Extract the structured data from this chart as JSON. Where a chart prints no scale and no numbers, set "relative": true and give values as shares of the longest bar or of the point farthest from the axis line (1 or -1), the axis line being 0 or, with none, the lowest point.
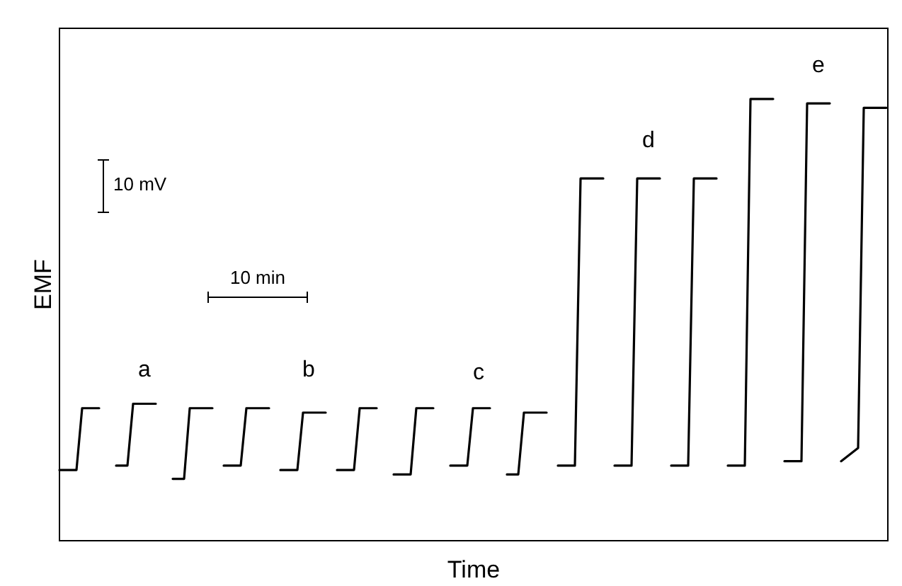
{
  "chart_data": {
    "type": "line",
    "xlabel": "Time",
    "ylabel": "EMF",
    "relative": true,
    "annotations": [
      "a",
      "b",
      "c",
      "d",
      "e",
      "10 mV",
      "10 min"
    ],
    "categories": [
      null,
      null,
      null,
      null,
      null,
      null,
      null,
      null,
      null,
      null,
      null,
      null,
      null,
      null,
      null,
      null,
      null,
      null,
      null,
      null,
      null,
      null,
      null,
      null,
      null,
      null,
      null,
      null,
      null,
      null,
      null,
      null,
      null,
      null,
      null,
      null,
      null,
      null,
      null,
      null,
      null,
      null,
      null,
      null,
      null,
      null,
      null,
      null,
      null,
      null,
      null,
      null,
      null,
      null,
      null,
      null,
      null,
      null,
      null,
      null,
      null,
      null,
      null,
      null,
      null,
      null,
      null,
      null,
      null,
      null,
      null,
      null,
      null,
      null,
      null,
      null,
      null,
      null,
      null,
      null,
      null,
      null,
      null,
      null,
      null,
      null,
      null,
      null,
      null,
      null,
      null,
      null,
      null,
      null,
      null,
      null,
      null,
      null,
      null,
      null,
      null,
      null,
      null,
      null,
      null,
      null,
      null,
      null,
      null,
      null,
      null,
      null,
      null,
      null,
      null,
      null,
      null,
      null,
      null,
      null,
      null,
      null,
      null,
      null,
      null,
      null,
      null,
      null,
      null,
      null,
      null,
      null,
      null,
      null,
      null,
      null,
      null,
      null,
      null,
      null,
      null,
      null,
      null,
      null,
      null,
      null,
      null
    ],
    "series": [
      {
        "color": "#000000",
        "values": [
          0.16,
          0.16,
          0.16,
          0.16,
          0.3,
          0.3,
          0.3,
          0.3,
          null,
          null,
          null,
          null,
          null,
          null,
          null,
          null,
          null,
          null,
          null,
          null,
          null,
          null,
          null,
          null,
          null,
          null,
          null,
          null,
          null,
          null,
          null,
          null,
          null,
          null,
          null,
          null,
          null,
          null,
          null,
          null,
          null,
          null,
          null,
          null,
          null,
          null,
          null,
          null,
          null,
          null,
          null,
          null,
          null,
          null,
          null,
          null,
          null,
          null,
          null,
          null,
          null,
          null,
          null,
          null,
          null,
          null,
          null,
          null,
          null,
          null,
          null,
          null,
          null,
          null,
          null,
          null,
          null,
          null,
          null,
          null,
          null,
          null,
          null,
          null,
          null,
          null,
          null,
          null,
          null,
          null,
          null,
          null,
          null,
          null,
          null,
          null,
          null,
          null,
          null,
          null,
          null,
          null,
          null,
          null,
          null,
          null,
          null,
          null,
          null,
          null,
          null,
          null,
          null,
          null,
          null,
          null,
          null,
          null,
          null,
          null,
          null,
          null,
          null,
          null,
          null,
          null,
          null,
          null,
          null,
          null,
          null,
          null,
          null,
          null,
          null,
          null,
          null,
          null,
          null,
          null,
          null,
          null,
          null,
          null,
          null,
          null,
          null
        ]
      },
      {
        "color": "#000000",
        "values": [
          null,
          null,
          null,
          null,
          null,
          null,
          null,
          null,
          null,
          null,
          0.17,
          0.17,
          0.17,
          0.31,
          0.31,
          0.31,
          0.31,
          0.31,
          null,
          null,
          null,
          null,
          null,
          null,
          null,
          null,
          null,
          null,
          null,
          null,
          null,
          null,
          null,
          null,
          null,
          null,
          null,
          null,
          null,
          null,
          null,
          null,
          null,
          null,
          null,
          null,
          null,
          null,
          null,
          null,
          null,
          null,
          null,
          null,
          null,
          null,
          null,
          null,
          null,
          null,
          null,
          null,
          null,
          null,
          null,
          null,
          null,
          null,
          null,
          null,
          null,
          null,
          null,
          null,
          null,
          null,
          null,
          null,
          null,
          null,
          null,
          null,
          null,
          null,
          null,
          null,
          null,
          null,
          null,
          null,
          null,
          null,
          null,
          null,
          null,
          null,
          null,
          null,
          null,
          null,
          null,
          null,
          null,
          null,
          null,
          null,
          null,
          null,
          null,
          null,
          null,
          null,
          null,
          null,
          null,
          null,
          null,
          null,
          null,
          null,
          null,
          null,
          null,
          null,
          null,
          null,
          null,
          null,
          null,
          null,
          null,
          null,
          null,
          null,
          null,
          null,
          null,
          null,
          null,
          null,
          null,
          null,
          null,
          null,
          null,
          null,
          null
        ]
      },
      {
        "color": "#000000",
        "values": [
          null,
          null,
          null,
          null,
          null,
          null,
          null,
          null,
          null,
          null,
          null,
          null,
          null,
          null,
          null,
          null,
          null,
          null,
          null,
          null,
          0.14,
          0.14,
          0.14,
          0.3,
          0.3,
          0.3,
          0.3,
          0.3,
          null,
          null,
          null,
          null,
          null,
          null,
          null,
          null,
          null,
          null,
          null,
          null,
          null,
          null,
          null,
          null,
          null,
          null,
          null,
          null,
          null,
          null,
          null,
          null,
          null,
          null,
          null,
          null,
          null,
          null,
          null,
          null,
          null,
          null,
          null,
          null,
          null,
          null,
          null,
          null,
          null,
          null,
          null,
          null,
          null,
          null,
          null,
          null,
          null,
          null,
          null,
          null,
          null,
          null,
          null,
          null,
          null,
          null,
          null,
          null,
          null,
          null,
          null,
          null,
          null,
          null,
          null,
          null,
          null,
          null,
          null,
          null,
          null,
          null,
          null,
          null,
          null,
          null,
          null,
          null,
          null,
          null,
          null,
          null,
          null,
          null,
          null,
          null,
          null,
          null,
          null,
          null,
          null,
          null,
          null,
          null,
          null,
          null,
          null,
          null,
          null,
          null,
          null,
          null,
          null,
          null,
          null,
          null,
          null,
          null,
          null,
          null,
          null,
          null,
          null,
          null,
          null,
          null,
          null
        ]
      },
      {
        "color": "#000000",
        "values": [
          null,
          null,
          null,
          null,
          null,
          null,
          null,
          null,
          null,
          null,
          null,
          null,
          null,
          null,
          null,
          null,
          null,
          null,
          null,
          null,
          null,
          null,
          null,
          null,
          null,
          null,
          null,
          null,
          null,
          0.17,
          0.17,
          0.17,
          0.17,
          0.3,
          0.3,
          0.3,
          0.3,
          0.3,
          null,
          null,
          null,
          null,
          null,
          null,
          null,
          null,
          null,
          null,
          null,
          null,
          null,
          null,
          null,
          null,
          null,
          null,
          null,
          null,
          null,
          null,
          null,
          null,
          null,
          null,
          null,
          null,
          null,
          null,
          null,
          null,
          null,
          null,
          null,
          null,
          null,
          null,
          null,
          null,
          null,
          null,
          null,
          null,
          null,
          null,
          null,
          null,
          null,
          null,
          null,
          null,
          null,
          null,
          null,
          null,
          null,
          null,
          null,
          null,
          null,
          null,
          null,
          null,
          null,
          null,
          null,
          null,
          null,
          null,
          null,
          null,
          null,
          null,
          null,
          null,
          null,
          null,
          null,
          null,
          null,
          null,
          null,
          null,
          null,
          null,
          null,
          null,
          null,
          null,
          null,
          null,
          null,
          null,
          null,
          null,
          null,
          null,
          null,
          null,
          null,
          null,
          null,
          null,
          null,
          null,
          null,
          null,
          null
        ]
      },
      {
        "color": "#000000",
        "values": [
          null,
          null,
          null,
          null,
          null,
          null,
          null,
          null,
          null,
          null,
          null,
          null,
          null,
          null,
          null,
          null,
          null,
          null,
          null,
          null,
          null,
          null,
          null,
          null,
          null,
          null,
          null,
          null,
          null,
          null,
          null,
          null,
          null,
          null,
          null,
          null,
          null,
          null,
          null,
          0.16,
          0.16,
          0.16,
          0.16,
          0.29,
          0.29,
          0.29,
          0.29,
          0.29,
          null,
          null,
          null,
          null,
          null,
          null,
          null,
          null,
          null,
          null,
          null,
          null,
          null,
          null,
          null,
          null,
          null,
          null,
          null,
          null,
          null,
          null,
          null,
          null,
          null,
          null,
          null,
          null,
          null,
          null,
          null,
          null,
          null,
          null,
          null,
          null,
          null,
          null,
          null,
          null,
          null,
          null,
          null,
          null,
          null,
          null,
          null,
          null,
          null,
          null,
          null,
          null,
          null,
          null,
          null,
          null,
          null,
          null,
          null,
          null,
          null,
          null,
          null,
          null,
          null,
          null,
          null,
          null,
          null,
          null,
          null,
          null,
          null,
          null,
          null,
          null,
          null,
          null,
          null,
          null,
          null,
          null,
          null,
          null,
          null,
          null,
          null,
          null,
          null,
          null,
          null,
          null,
          null,
          null,
          null,
          null,
          null,
          null,
          null
        ]
      },
      {
        "color": "#000000",
        "values": [
          null,
          null,
          null,
          null,
          null,
          null,
          null,
          null,
          null,
          null,
          null,
          null,
          null,
          null,
          null,
          null,
          null,
          null,
          null,
          null,
          null,
          null,
          null,
          null,
          null,
          null,
          null,
          null,
          null,
          null,
          null,
          null,
          null,
          null,
          null,
          null,
          null,
          null,
          null,
          null,
          null,
          null,
          null,
          null,
          null,
          null,
          null,
          null,
          null,
          0.16,
          0.16,
          0.16,
          0.16,
          0.3,
          0.3,
          0.3,
          0.3,
          null,
          null,
          null,
          null,
          null,
          null,
          null,
          null,
          null,
          null,
          null,
          null,
          null,
          null,
          null,
          null,
          null,
          null,
          null,
          null,
          null,
          null,
          null,
          null,
          null,
          null,
          null,
          null,
          null,
          null,
          null,
          null,
          null,
          null,
          null,
          null,
          null,
          null,
          null,
          null,
          null,
          null,
          null,
          null,
          null,
          null,
          null,
          null,
          null,
          null,
          null,
          null,
          null,
          null,
          null,
          null,
          null,
          null,
          null,
          null,
          null,
          null,
          null,
          null,
          null,
          null,
          null,
          null,
          null,
          null,
          null,
          null,
          null,
          null,
          null,
          null,
          null,
          null,
          null,
          null,
          null,
          null,
          null,
          null,
          null,
          null,
          null,
          null,
          null,
          null
        ]
      },
      {
        "color": "#000000",
        "values": [
          null,
          null,
          null,
          null,
          null,
          null,
          null,
          null,
          null,
          null,
          null,
          null,
          null,
          null,
          null,
          null,
          null,
          null,
          null,
          null,
          null,
          null,
          null,
          null,
          null,
          null,
          null,
          null,
          null,
          null,
          null,
          null,
          null,
          null,
          null,
          null,
          null,
          null,
          null,
          null,
          null,
          null,
          null,
          null,
          null,
          null,
          null,
          null,
          null,
          null,
          null,
          null,
          null,
          null,
          null,
          null,
          null,
          null,
          null,
          0.15,
          0.15,
          0.15,
          0.15,
          0.3,
          0.3,
          0.3,
          0.3,
          null,
          null,
          null,
          null,
          null,
          null,
          null,
          null,
          null,
          null,
          null,
          null,
          null,
          null,
          null,
          null,
          null,
          null,
          null,
          null,
          null,
          null,
          null,
          null,
          null,
          null,
          null,
          null,
          null,
          null,
          null,
          null,
          null,
          null,
          null,
          null,
          null,
          null,
          null,
          null,
          null,
          null,
          null,
          null,
          null,
          null,
          null,
          null,
          null,
          null,
          null,
          null,
          null,
          null,
          null,
          null,
          null,
          null,
          null,
          null,
          null,
          null,
          null,
          null,
          null,
          null,
          null,
          null,
          null,
          null,
          null,
          null,
          null,
          null,
          null,
          null,
          null,
          null,
          null,
          null
        ]
      },
      {
        "color": "#000000",
        "values": [
          null,
          null,
          null,
          null,
          null,
          null,
          null,
          null,
          null,
          null,
          null,
          null,
          null,
          null,
          null,
          null,
          null,
          null,
          null,
          null,
          null,
          null,
          null,
          null,
          null,
          null,
          null,
          null,
          null,
          null,
          null,
          null,
          null,
          null,
          null,
          null,
          null,
          null,
          null,
          null,
          null,
          null,
          null,
          null,
          null,
          null,
          null,
          null,
          null,
          null,
          null,
          null,
          null,
          null,
          null,
          null,
          null,
          null,
          null,
          null,
          null,
          null,
          null,
          null,
          null,
          null,
          null,
          null,
          null,
          0.17,
          0.17,
          0.17,
          0.17,
          0.3,
          0.3,
          0.3,
          0.3,
          null,
          null,
          null,
          null,
          null,
          null,
          null,
          null,
          null,
          null,
          null,
          null,
          null,
          null,
          null,
          null,
          null,
          null,
          null,
          null,
          null,
          null,
          null,
          null,
          null,
          null,
          null,
          null,
          null,
          null,
          null,
          null,
          null,
          null,
          null,
          null,
          null,
          null,
          null,
          null,
          null,
          null,
          null,
          null,
          null,
          null,
          null,
          null,
          null,
          null,
          null,
          null,
          null,
          null,
          null,
          null,
          null,
          null,
          null,
          null,
          null,
          null,
          null,
          null,
          null,
          null,
          null,
          null,
          null,
          null
        ]
      },
      {
        "color": "#000000",
        "values": [
          null,
          null,
          null,
          null,
          null,
          null,
          null,
          null,
          null,
          null,
          null,
          null,
          null,
          null,
          null,
          null,
          null,
          null,
          null,
          null,
          null,
          null,
          null,
          null,
          null,
          null,
          null,
          null,
          null,
          null,
          null,
          null,
          null,
          null,
          null,
          null,
          null,
          null,
          null,
          null,
          null,
          null,
          null,
          null,
          null,
          null,
          null,
          null,
          null,
          null,
          null,
          null,
          null,
          null,
          null,
          null,
          null,
          null,
          null,
          null,
          null,
          null,
          null,
          null,
          null,
          null,
          null,
          null,
          null,
          null,
          null,
          null,
          null,
          null,
          null,
          null,
          null,
          null,
          null,
          0.15,
          0.15,
          0.15,
          0.29,
          0.29,
          0.29,
          0.29,
          0.29,
          null,
          null,
          null,
          null,
          null,
          null,
          null,
          null,
          null,
          null,
          null,
          null,
          null,
          null,
          null,
          null,
          null,
          null,
          null,
          null,
          null,
          null,
          null,
          null,
          null,
          null,
          null,
          null,
          null,
          null,
          null,
          null,
          null,
          null,
          null,
          null,
          null,
          null,
          null,
          null,
          null,
          null,
          null,
          null,
          null,
          null,
          null,
          null,
          null,
          null,
          null,
          null,
          null,
          null,
          null,
          null,
          null,
          null,
          null,
          null
        ]
      },
      {
        "color": "#000000",
        "values": [
          null,
          null,
          null,
          null,
          null,
          null,
          null,
          null,
          null,
          null,
          null,
          null,
          null,
          null,
          null,
          null,
          null,
          null,
          null,
          null,
          null,
          null,
          null,
          null,
          null,
          null,
          null,
          null,
          null,
          null,
          null,
          null,
          null,
          null,
          null,
          null,
          null,
          null,
          null,
          null,
          null,
          null,
          null,
          null,
          null,
          null,
          null,
          null,
          null,
          null,
          null,
          null,
          null,
          null,
          null,
          null,
          null,
          null,
          null,
          null,
          null,
          null,
          null,
          null,
          null,
          null,
          null,
          null,
          null,
          null,
          null,
          null,
          null,
          null,
          null,
          null,
          null,
          null,
          null,
          null,
          null,
          null,
          null,
          null,
          null,
          null,
          null,
          null,
          0.17,
          0.17,
          0.17,
          0.17,
          0.82,
          0.82,
          0.82,
          0.82,
          0.82,
          null,
          null,
          null,
          null,
          null,
          null,
          null,
          null,
          null,
          null,
          null,
          null,
          null,
          null,
          null,
          null,
          null,
          null,
          null,
          null,
          null,
          null,
          null,
          null,
          null,
          null,
          null,
          null,
          null,
          null,
          null,
          null,
          null,
          null,
          null,
          null,
          null,
          null,
          null,
          null,
          null,
          null,
          null,
          null,
          null,
          null,
          null,
          null,
          null,
          null
        ]
      },
      {
        "color": "#000000",
        "values": [
          null,
          null,
          null,
          null,
          null,
          null,
          null,
          null,
          null,
          null,
          null,
          null,
          null,
          null,
          null,
          null,
          null,
          null,
          null,
          null,
          null,
          null,
          null,
          null,
          null,
          null,
          null,
          null,
          null,
          null,
          null,
          null,
          null,
          null,
          null,
          null,
          null,
          null,
          null,
          null,
          null,
          null,
          null,
          null,
          null,
          null,
          null,
          null,
          null,
          null,
          null,
          null,
          null,
          null,
          null,
          null,
          null,
          null,
          null,
          null,
          null,
          null,
          null,
          null,
          null,
          null,
          null,
          null,
          null,
          null,
          null,
          null,
          null,
          null,
          null,
          null,
          null,
          null,
          null,
          null,
          null,
          null,
          null,
          null,
          null,
          null,
          null,
          null,
          null,
          null,
          null,
          null,
          null,
          null,
          null,
          null,
          null,
          null,
          0.17,
          0.17,
          0.17,
          0.17,
          0.82,
          0.82,
          0.82,
          0.82,
          0.82,
          null,
          null,
          null,
          null,
          null,
          null,
          null,
          null,
          null,
          null,
          null,
          null,
          null,
          null,
          null,
          null,
          null,
          null,
          null,
          null,
          null,
          null,
          null,
          null,
          null,
          null,
          null,
          null,
          null,
          null,
          null,
          null,
          null,
          null,
          null,
          null,
          null,
          null,
          null,
          null
        ]
      },
      {
        "color": "#000000",
        "values": [
          null,
          null,
          null,
          null,
          null,
          null,
          null,
          null,
          null,
          null,
          null,
          null,
          null,
          null,
          null,
          null,
          null,
          null,
          null,
          null,
          null,
          null,
          null,
          null,
          null,
          null,
          null,
          null,
          null,
          null,
          null,
          null,
          null,
          null,
          null,
          null,
          null,
          null,
          null,
          null,
          null,
          null,
          null,
          null,
          null,
          null,
          null,
          null,
          null,
          null,
          null,
          null,
          null,
          null,
          null,
          null,
          null,
          null,
          null,
          null,
          null,
          null,
          null,
          null,
          null,
          null,
          null,
          null,
          null,
          null,
          null,
          null,
          null,
          null,
          null,
          null,
          null,
          null,
          null,
          null,
          null,
          null,
          null,
          null,
          null,
          null,
          null,
          null,
          null,
          null,
          null,
          null,
          null,
          null,
          null,
          null,
          null,
          null,
          null,
          null,
          null,
          null,
          null,
          null,
          null,
          null,
          null,
          null,
          0.17,
          0.17,
          0.17,
          0.17,
          0.82,
          0.82,
          0.82,
          0.82,
          0.82,
          null,
          null,
          null,
          null,
          null,
          null,
          null,
          null,
          null,
          null,
          null,
          null,
          null,
          null,
          null,
          null,
          null,
          null,
          null,
          null,
          null,
          null,
          null,
          null,
          null,
          null,
          null,
          null,
          null,
          null
        ]
      },
      {
        "color": "#000000",
        "values": [
          null,
          null,
          null,
          null,
          null,
          null,
          null,
          null,
          null,
          null,
          null,
          null,
          null,
          null,
          null,
          null,
          null,
          null,
          null,
          null,
          null,
          null,
          null,
          null,
          null,
          null,
          null,
          null,
          null,
          null,
          null,
          null,
          null,
          null,
          null,
          null,
          null,
          null,
          null,
          null,
          null,
          null,
          null,
          null,
          null,
          null,
          null,
          null,
          null,
          null,
          null,
          null,
          null,
          null,
          null,
          null,
          null,
          null,
          null,
          null,
          null,
          null,
          null,
          null,
          null,
          null,
          null,
          null,
          null,
          null,
          null,
          null,
          null,
          null,
          null,
          null,
          null,
          null,
          null,
          null,
          null,
          null,
          null,
          null,
          null,
          null,
          null,
          null,
          null,
          null,
          null,
          null,
          null,
          null,
          null,
          null,
          null,
          null,
          null,
          null,
          null,
          null,
          null,
          null,
          null,
          null,
          null,
          null,
          null,
          null,
          null,
          null,
          null,
          null,
          null,
          null,
          null,
          null,
          0.17,
          0.17,
          0.17,
          0.17,
          1,
          1,
          1,
          1,
          1,
          null,
          null,
          null,
          null,
          null,
          null,
          null,
          null,
          null,
          null,
          null,
          null,
          null,
          null,
          null,
          null,
          null,
          null,
          null,
          null
        ]
      },
      {
        "color": "#000000",
        "values": [
          null,
          null,
          null,
          null,
          null,
          null,
          null,
          null,
          null,
          null,
          null,
          null,
          null,
          null,
          null,
          null,
          null,
          null,
          null,
          null,
          null,
          null,
          null,
          null,
          null,
          null,
          null,
          null,
          null,
          null,
          null,
          null,
          null,
          null,
          null,
          null,
          null,
          null,
          null,
          null,
          null,
          null,
          null,
          null,
          null,
          null,
          null,
          null,
          null,
          null,
          null,
          null,
          null,
          null,
          null,
          null,
          null,
          null,
          null,
          null,
          null,
          null,
          null,
          null,
          null,
          null,
          null,
          null,
          null,
          null,
          null,
          null,
          null,
          null,
          null,
          null,
          null,
          null,
          null,
          null,
          null,
          null,
          null,
          null,
          null,
          null,
          null,
          null,
          null,
          null,
          null,
          null,
          null,
          null,
          null,
          null,
          null,
          null,
          null,
          null,
          null,
          null,
          null,
          null,
          null,
          null,
          null,
          null,
          null,
          null,
          null,
          null,
          null,
          null,
          null,
          null,
          null,
          null,
          null,
          null,
          null,
          null,
          null,
          null,
          null,
          null,
          null,
          null,
          0.18,
          0.18,
          0.18,
          0.18,
          0.99,
          0.99,
          0.99,
          0.99,
          0.99,
          null,
          null,
          null,
          null,
          null,
          null,
          null,
          null,
          null,
          null
        ]
      },
      {
        "color": "#000000",
        "values": [
          null,
          null,
          null,
          null,
          null,
          null,
          null,
          null,
          null,
          null,
          null,
          null,
          null,
          null,
          null,
          null,
          null,
          null,
          null,
          null,
          null,
          null,
          null,
          null,
          null,
          null,
          null,
          null,
          null,
          null,
          null,
          null,
          null,
          null,
          null,
          null,
          null,
          null,
          null,
          null,
          null,
          null,
          null,
          null,
          null,
          null,
          null,
          null,
          null,
          null,
          null,
          null,
          null,
          null,
          null,
          null,
          null,
          null,
          null,
          null,
          null,
          null,
          null,
          null,
          null,
          null,
          null,
          null,
          null,
          null,
          null,
          null,
          null,
          null,
          null,
          null,
          null,
          null,
          null,
          null,
          null,
          null,
          null,
          null,
          null,
          null,
          null,
          null,
          null,
          null,
          null,
          null,
          null,
          null,
          null,
          null,
          null,
          null,
          null,
          null,
          null,
          null,
          null,
          null,
          null,
          null,
          null,
          null,
          null,
          null,
          null,
          null,
          null,
          null,
          null,
          null,
          null,
          null,
          null,
          null,
          null,
          null,
          null,
          null,
          null,
          null,
          null,
          null,
          null,
          null,
          null,
          null,
          null,
          null,
          null,
          null,
          null,
          null,
          0.18,
          0.19,
          0.2,
          0.21,
          0.98,
          0.98,
          0.98,
          0.98,
          0.98
        ]
      }
    ]
  }
}
